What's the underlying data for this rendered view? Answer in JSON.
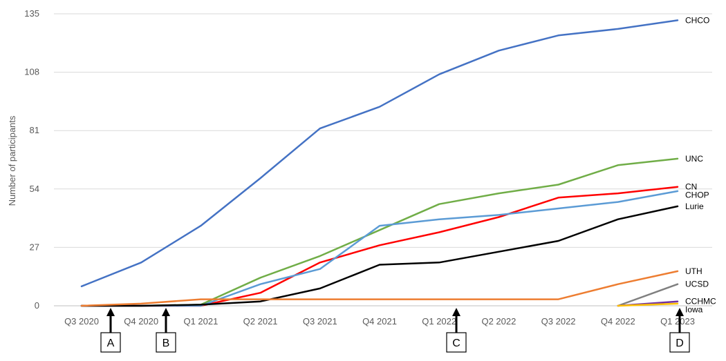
{
  "chart_data": {
    "type": "line",
    "title": "",
    "xlabel": "",
    "ylabel": "Number of participants",
    "ylim": [
      0,
      135
    ],
    "yticks": [
      0,
      27,
      54,
      81,
      108,
      135
    ],
    "categories": [
      "Q3 2020",
      "Q4 2020",
      "Q1 2021",
      "Q2 2021",
      "Q3 2021",
      "Q4 2021",
      "Q1 2022",
      "Q2 2022",
      "Q3 2022",
      "Q4 2022",
      "Q1 2023"
    ],
    "grid": "horizontal",
    "series": [
      {
        "name": "CHCO",
        "color": "#4472C4",
        "values": [
          9,
          20,
          37,
          59,
          82,
          92,
          107,
          118,
          125,
          128,
          132
        ]
      },
      {
        "name": "UNC",
        "color": "#70AD47",
        "values": [
          0,
          0,
          0.5,
          13,
          23,
          35,
          47,
          52,
          56,
          65,
          68
        ]
      },
      {
        "name": "CN",
        "color": "#FF0000",
        "values": [
          0,
          0,
          0,
          6,
          20,
          28,
          34,
          41,
          50,
          52,
          55
        ]
      },
      {
        "name": "CHOP",
        "color": "#5B9BD5",
        "values": [
          0,
          0,
          0,
          10,
          17,
          37,
          40,
          42,
          45,
          48,
          53
        ]
      },
      {
        "name": "Lurie",
        "color": "#000000",
        "values": [
          0,
          0,
          0.5,
          2,
          8,
          19,
          20,
          25,
          30,
          40,
          46
        ]
      },
      {
        "name": "UTH",
        "color": "#ED7D31",
        "values": [
          0,
          1,
          3,
          3,
          3,
          3,
          3,
          3,
          3,
          10,
          16
        ]
      },
      {
        "name": "UCSD",
        "color": "#7F7F7F",
        "values": [
          null,
          null,
          null,
          null,
          null,
          null,
          null,
          null,
          null,
          0,
          10
        ]
      },
      {
        "name": "CCHMC",
        "color": "#7030A0",
        "values": [
          null,
          null,
          null,
          null,
          null,
          null,
          null,
          null,
          null,
          0,
          2
        ]
      },
      {
        "name": "Iowa",
        "color": "#FFC000",
        "values": [
          null,
          null,
          null,
          null,
          null,
          null,
          null,
          null,
          null,
          0,
          1
        ]
      }
    ],
    "markers": [
      {
        "label": "A",
        "x": "Q3 2020 – Q4 2020"
      },
      {
        "label": "B",
        "x": "Q4 2020"
      },
      {
        "label": "C",
        "x": "Q1 2022"
      },
      {
        "label": "D",
        "x": "Q1 2023"
      }
    ]
  }
}
